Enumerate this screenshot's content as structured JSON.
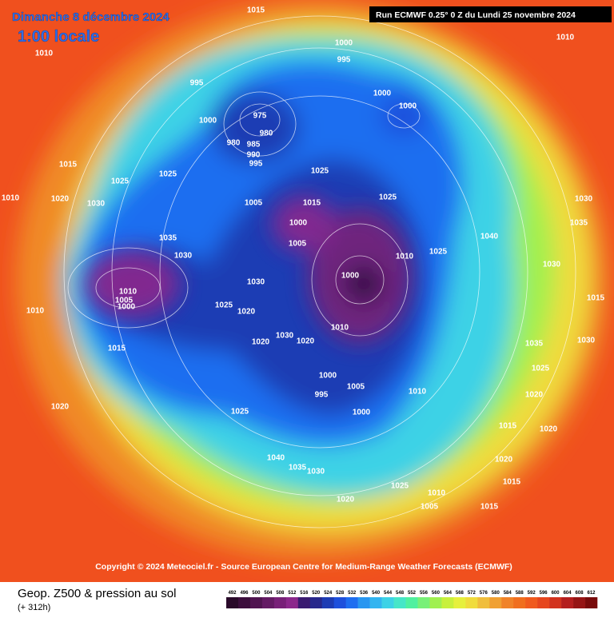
{
  "header": {
    "title": "Dimanche 8 décembre 2024",
    "subtitle": "1:00 locale",
    "run": "Run ECMWF 0.25° 0 Z du Lundi 25 novembre 2024"
  },
  "copyright": "Copyright © 2024 Meteociel.fr - Source European Centre for Medium-Range Weather Forecasts (ECMWF)",
  "footer": {
    "label": "Geop. Z500 & pression au sol",
    "lead": "(+ 312h)"
  },
  "colorbar": {
    "ticks": [
      492,
      496,
      500,
      504,
      508,
      512,
      516,
      520,
      524,
      528,
      532,
      536,
      540,
      544,
      548,
      552,
      556,
      560,
      564,
      568,
      572,
      576,
      580,
      584,
      588,
      592,
      596,
      600,
      604,
      608,
      612
    ],
    "colors": [
      "#2a0a2a",
      "#3c0e3c",
      "#501450",
      "#641a64",
      "#782078",
      "#8c288c",
      "#3a1a70",
      "#28288c",
      "#1e3cb4",
      "#1e50dc",
      "#1e6ef0",
      "#2896f0",
      "#32b4f0",
      "#3cd2e6",
      "#46e6c8",
      "#50f0a0",
      "#78f078",
      "#a0f050",
      "#c8f03c",
      "#e6f03c",
      "#f0dc3c",
      "#f0be3c",
      "#f0a032",
      "#f08228",
      "#f06e1e",
      "#f05a1e",
      "#e6461e",
      "#d2321e",
      "#b41e1e",
      "#961414",
      "#780a0a"
    ]
  },
  "isobar_labels": [
    "1015",
    "1010",
    "1000",
    "995",
    "995",
    "1000",
    "1000",
    "1000",
    "975",
    "980",
    "980",
    "985",
    "990",
    "995",
    "1015",
    "1020",
    "1025",
    "1025",
    "1030",
    "1035",
    "1030",
    "1010",
    "1005",
    "1000",
    "1010",
    "1025",
    "1020",
    "1030",
    "1025",
    "1005",
    "1000",
    "1015",
    "1000",
    "1005",
    "1025",
    "1015",
    "1025",
    "1020",
    "1000",
    "995",
    "1000",
    "1005",
    "1030",
    "1020",
    "1010",
    "1010",
    "1025",
    "1020",
    "1040",
    "1035",
    "1030",
    "1020",
    "1025",
    "1010",
    "1005",
    "1015",
    "1015",
    "1020",
    "1030",
    "1035",
    "1040",
    "1030",
    "1025",
    "1020",
    "1015",
    "1010",
    "1030",
    "1020",
    "1015",
    "1035",
    "1010",
    "1010"
  ]
}
